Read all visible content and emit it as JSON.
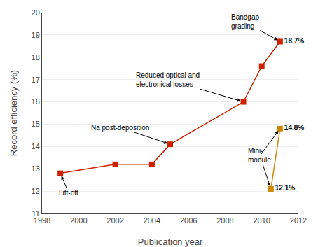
{
  "chart_data": {
    "type": "line",
    "xlabel": "Publication year",
    "ylabel": "Record efficiency (%)",
    "series": [
      {
        "x": [
          1999,
          2002,
          2004,
          2005,
          2009,
          2010,
          2011
        ],
        "values": [
          12.8,
          13.2,
          13.2,
          14.1,
          16.0,
          17.6,
          18.7
        ],
        "value_labels": [
          null,
          null,
          null,
          null,
          null,
          null,
          "18.7%"
        ],
        "color": "#cc2200",
        "marker": "square"
      },
      {
        "x": [
          2010.5,
          2011
        ],
        "values": [
          12.1,
          14.8
        ],
        "value_labels": [
          "12.1%",
          "14.8%"
        ],
        "color": "#cc8800",
        "marker": "square"
      }
    ],
    "annotations": [
      {
        "text": "Lift-off",
        "x": 1999,
        "y": 12.8
      },
      {
        "text": "Na post-deposition",
        "x": 2005,
        "y": 14.1
      },
      {
        "text": "Reduced optical and\nelectronical losses",
        "x": 2009,
        "y": 16.0
      },
      {
        "text": "Bandgap\ngrading",
        "x": 2011,
        "y": 18.7
      },
      {
        "text": "Mini-\nmodule",
        "x": [
          2010.5,
          2011
        ],
        "y": [
          12.1,
          14.8
        ]
      }
    ],
    "xlim": [
      1998,
      2012
    ],
    "ylim": [
      11,
      20
    ],
    "xticks": [
      1998,
      2000,
      2002,
      2004,
      2006,
      2008,
      2010,
      2012
    ],
    "yticks": [
      11,
      12,
      13,
      14,
      15,
      16,
      17,
      18,
      19,
      20
    ],
    "grid": "y"
  }
}
